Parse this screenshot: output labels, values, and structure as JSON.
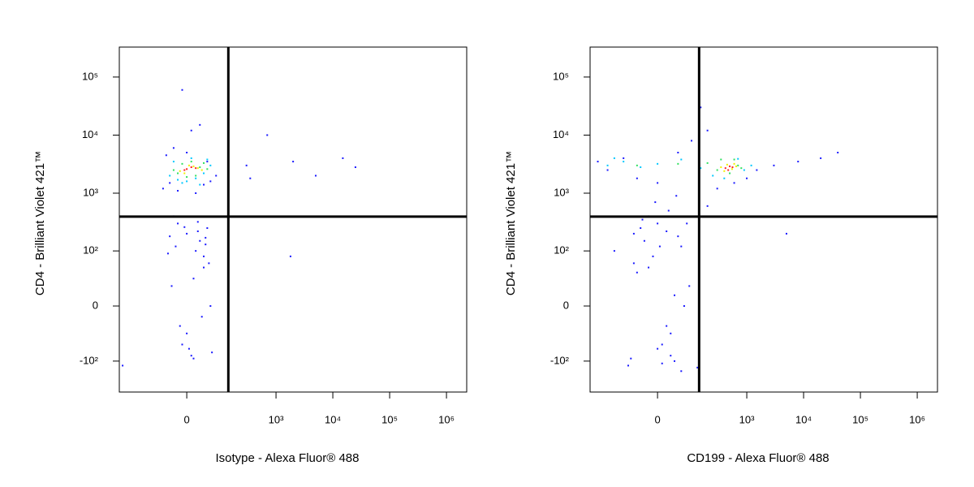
{
  "chart_data": [
    {
      "type": "scatter",
      "xlabel": "Isotype - Alexa Fluor® 488",
      "ylabel": "CD4 - Brilliant Violet 421™",
      "xscale": "biexponential",
      "yscale": "biexponential",
      "xlim": [
        -412,
        2270000
      ],
      "ylim": [
        -345,
        328000
      ],
      "xticks": [
        0,
        {
          "value": 1000,
          "label": "10³"
        },
        {
          "value": 10000,
          "label": "10⁴"
        },
        {
          "value": 100000,
          "label": "10⁵"
        },
        {
          "value": 1000000,
          "label": "10⁶"
        }
      ],
      "yticks": [
        {
          "value": -100,
          "label": "-10²"
        },
        0,
        {
          "value": 100,
          "label": "10²"
        },
        {
          "value": 1000,
          "label": "10³"
        },
        {
          "value": 10000,
          "label": "10⁴"
        },
        {
          "value": 100000,
          "label": "10⁵"
        }
      ],
      "gates": {
        "x": 140,
        "y": 394
      },
      "series": [
        {
          "color": "#1a1aff",
          "x": [
            -60,
            -40,
            -20,
            0,
            20,
            40,
            60,
            80,
            -50,
            -30,
            10,
            50,
            -10,
            30,
            -20,
            0,
            20,
            40,
            60,
            -10,
            10,
            30,
            50,
            -30,
            0,
            40,
            300,
            700,
            2000,
            15000
          ],
          "values": [
            1200,
            1500,
            1100,
            5000,
            1000,
            1400,
            1600,
            2000,
            4500,
            6000,
            12000,
            3500,
            60000,
            15000,
            300,
            200,
            100,
            50,
            0,
            -50,
            -80,
            150,
            250,
            400,
            -30,
            80,
            3000,
            10000,
            3500,
            4000
          ]
        },
        {
          "color": "#1a1aff",
          "x": [
            -40,
            -25,
            -15,
            5,
            15,
            25,
            35,
            45,
            55,
            65,
            -35,
            -5,
            15,
            45,
            25,
            -45,
            -360,
            140,
            1800,
            350,
            25000,
            5000
          ],
          "values": [
            180,
            120,
            -20,
            -60,
            30,
            220,
            -10,
            130,
            60,
            -70,
            20,
            260,
            -90,
            170,
            320,
            90,
            -120,
            0,
            80,
            1800,
            2800,
            2000
          ]
        },
        {
          "color": "#00c8ff",
          "x": [
            -40,
            -20,
            0,
            20,
            40,
            60,
            -30,
            10,
            50,
            -10,
            30
          ],
          "values": [
            2000,
            1700,
            1600,
            1800,
            2200,
            3000,
            3500,
            4000,
            3800,
            1500,
            1400
          ]
        },
        {
          "color": "#30e060",
          "x": [
            -30,
            -10,
            10,
            30,
            50,
            -20,
            20,
            40,
            0
          ],
          "values": [
            2500,
            3200,
            3500,
            2800,
            2600,
            2200,
            2000,
            3300,
            1900
          ]
        },
        {
          "color": "#f0f000",
          "x": [
            -15,
            5,
            25,
            -5,
            15,
            35
          ],
          "values": [
            2400,
            3000,
            2700,
            2200,
            2900,
            2500
          ]
        },
        {
          "color": "#ff2020",
          "x": [
            0,
            10,
            -5,
            20
          ],
          "values": [
            2600,
            2800,
            2500,
            2700
          ]
        }
      ]
    },
    {
      "type": "scatter",
      "xlabel": "CD199 - Alexa Fluor® 488",
      "ylabel": "CD4 - Brilliant Violet 421™",
      "xscale": "biexponential",
      "yscale": "biexponential",
      "xlim": [
        -412,
        2270000
      ],
      "ylim": [
        -345,
        328000
      ],
      "xticks": [
        0,
        {
          "value": 1000,
          "label": "10³"
        },
        {
          "value": 10000,
          "label": "10⁴"
        },
        {
          "value": 100000,
          "label": "10⁵"
        },
        {
          "value": 1000000,
          "label": "10⁶"
        }
      ],
      "yticks": [
        {
          "value": -100,
          "label": "-10²"
        },
        0,
        {
          "value": 100,
          "label": "10²"
        },
        {
          "value": 1000,
          "label": "10³"
        },
        {
          "value": 10000,
          "label": "10⁴"
        },
        {
          "value": 100000,
          "label": "10⁵"
        }
      ],
      "gates": {
        "x": 140,
        "y": 394
      },
      "series": [
        {
          "color": "#1a1aff",
          "x": [
            -300,
            -200,
            -100,
            -50,
            0,
            50,
            100,
            200,
            300,
            600,
            1000,
            1500,
            3000,
            8000,
            20000,
            40000,
            -150,
            -60,
            -20,
            10,
            40,
            70,
            -40,
            0,
            30,
            60,
            -80,
            20,
            150,
            5000
          ],
          "values": [
            3500,
            2500,
            4000,
            1800,
            1500,
            5000,
            8000,
            12000,
            1200,
            1500,
            1800,
            2500,
            3000,
            3500,
            4000,
            5000,
            100,
            200,
            50,
            -50,
            -100,
            0,
            250,
            300,
            -80,
            120,
            -120,
            -20,
            30000,
            200
          ]
        },
        {
          "color": "#1a1aff",
          "x": [
            -30,
            -10,
            0,
            20,
            40,
            60,
            80,
            -50,
            -20,
            10,
            50,
            30,
            -60,
            5,
            -70,
            90,
            130,
            200,
            -5,
            25,
            45,
            -35
          ],
          "values": [
            150,
            80,
            -60,
            220,
            10,
            -150,
            300,
            40,
            400,
            -110,
            180,
            -30,
            60,
            120,
            -90,
            20,
            -130,
            600,
            700,
            500,
            900,
            350
          ]
        },
        {
          "color": "#00c8ff",
          "x": [
            -200,
            -100,
            -40,
            0,
            60,
            150,
            250,
            700,
            900,
            1200,
            400,
            -150
          ],
          "values": [
            3000,
            3500,
            2800,
            3200,
            3800,
            2700,
            2000,
            3900,
            2500,
            3000,
            1800,
            4000
          ]
        },
        {
          "color": "#30e060",
          "x": [
            200,
            300,
            500,
            700,
            800,
            350,
            600,
            -50,
            50
          ],
          "values": [
            3300,
            2500,
            2200,
            3000,
            2700,
            3800,
            3800,
            3000,
            3200
          ]
        },
        {
          "color": "#f0f000",
          "x": [
            350,
            450,
            550,
            650,
            400,
            600
          ],
          "values": [
            2800,
            3100,
            2600,
            2900,
            2400,
            3200
          ]
        },
        {
          "color": "#ff2020",
          "x": [
            420,
            500,
            560,
            470
          ],
          "values": [
            2700,
            2900,
            2800,
            2500
          ]
        }
      ]
    }
  ]
}
